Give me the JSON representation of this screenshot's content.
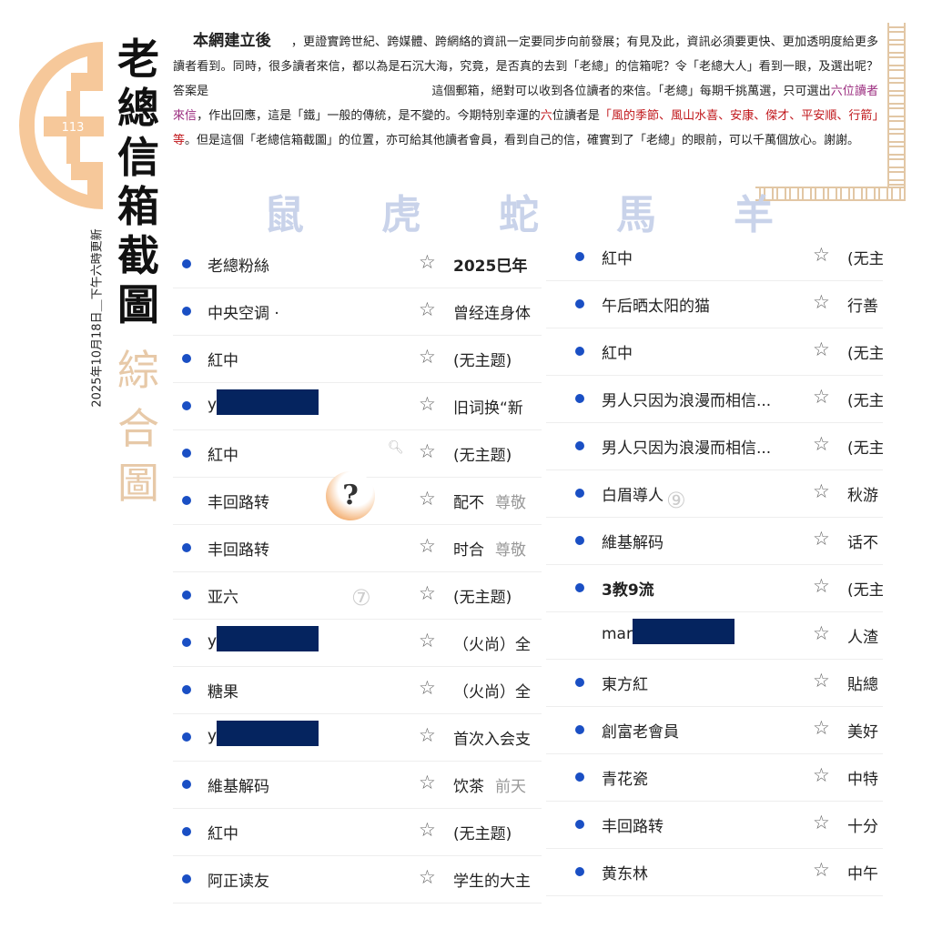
{
  "logo": {
    "text": "113",
    "color": "#f6c89a"
  },
  "title": {
    "black_chars": [
      "老",
      "總",
      "信",
      "箱",
      "截",
      "圖"
    ],
    "tan_chars": [
      "綜",
      "合",
      "圖"
    ]
  },
  "update_date": "2025年10月18日＿下午六時更新",
  "intro": {
    "lead": "本網建立後",
    "p1": "，更證實跨世紀、跨媒體、跨網絡的資訊一定要同步向前發展；有見及此，資訊必須要更快、更加透明度給更多讀者看到。同時，很多讀者來信，都以為是石沉大海，究竟，是否真的去到「老總」的信箱呢？令「老總大人」看到一眼，及選出呢？答案是",
    "p2": "這個郵箱，絕對可以收到各位讀者的來信。「老總」每期千挑萬選，只可選出",
    "highlight1": "六位讀者來信",
    "p3": "，作出回應，這是「鐵」一般的傳統，是不變的。今期特別幸運的",
    "highlight2": "六",
    "p4": "位讀者是",
    "highlight3": "「風的季節、風山水喜、安康、傑才、平安順、行箭」等",
    "p5": "。但是這個「老總信箱截圖」的位置，亦可給其他讀者會員，看到自己的信，確實到了「老總」的眼前，可以千萬個放心。謝謝。"
  },
  "zodiac": [
    "鼠",
    "虎",
    "蛇",
    "馬",
    "羊"
  ],
  "markers": {
    "left": "⑦",
    "right": "⑨",
    "help": "?"
  },
  "colors": {
    "unread_dot": "#1a4fc4",
    "redaction": "#05245f",
    "accent_red": "#c0161a",
    "accent_purple": "#9b2d7f"
  },
  "left_list": [
    {
      "name": "老總粉絲",
      "subject": "2025巳年",
      "bold_subject": true
    },
    {
      "name": "中央空调 ·",
      "subject": "曾经连身体"
    },
    {
      "name": "紅中",
      "subject": "(无主题)"
    },
    {
      "name": "y",
      "redacted": true,
      "subject": "旧词换“新"
    },
    {
      "name": "紅中",
      "subject": "(无主题)",
      "search_icon": true
    },
    {
      "name": "丰回路转",
      "subject": "配不",
      "preview": "尊敬"
    },
    {
      "name": "丰回路转",
      "subject": "时合",
      "preview": "尊敬"
    },
    {
      "name": "亚六",
      "subject": "(无主题)"
    },
    {
      "name": "y",
      "redacted": true,
      "subject": "（火尚）全"
    },
    {
      "name": "糖果",
      "subject": "（火尚）全"
    },
    {
      "name": "y",
      "redacted": true,
      "subject": "首次入会支"
    },
    {
      "name": "維基解码",
      "subject": "饮茶",
      "preview": "前天"
    },
    {
      "name": "紅中",
      "subject": "(无主题)"
    },
    {
      "name": "阿正读友",
      "subject": "学生的大主"
    }
  ],
  "right_list": [
    {
      "name": "紅中",
      "subject": "(无主"
    },
    {
      "name": "午后晒太阳的猫",
      "subject": "行善"
    },
    {
      "name": "紅中",
      "subject": "(无主"
    },
    {
      "name": "男人只因为浪漫而相信...",
      "subject": "(无主"
    },
    {
      "name": "男人只因为浪漫而相信...",
      "subject": "(无主"
    },
    {
      "name": "白眉導人",
      "subject": "秋游"
    },
    {
      "name": "維基解码",
      "subject": "话不"
    },
    {
      "name": "3教9流",
      "subject": "(无主",
      "bold_name": true
    },
    {
      "name": "mar",
      "redacted": true,
      "read": true,
      "subject": "人渣"
    },
    {
      "name": "東方紅",
      "subject": "貼總"
    },
    {
      "name": "創富老會員",
      "subject": "美好"
    },
    {
      "name": "青花瓷",
      "subject": "中特"
    },
    {
      "name": "丰回路转",
      "subject": "十分"
    },
    {
      "name": "黄东林",
      "subject": "中午"
    }
  ]
}
